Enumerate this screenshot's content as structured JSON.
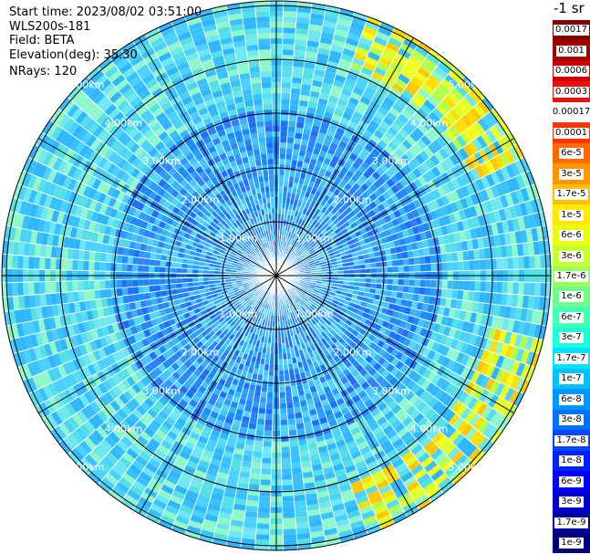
{
  "info": {
    "start_time": "Start time: 2023/08/02 03:51:00",
    "instrument": "WLS200s-181",
    "field": "Field: BETA",
    "elevation": "Elevation(deg): 35.30",
    "nrays": "NRays: 120"
  },
  "colorbar": {
    "title": "-1 sr",
    "labels": [
      "0.0017",
      "0.001",
      "0.0006",
      "0.0003",
      "0.00017",
      "0.0001",
      "6e-5",
      "3e-5",
      "1.7e-5",
      "1e-5",
      "6e-6",
      "3e-6",
      "1.7e-6",
      "1e-6",
      "6e-7",
      "3e-7",
      "1.7e-7",
      "1e-7",
      "6e-8",
      "3e-8",
      "1.7e-8",
      "1e-8",
      "6e-9",
      "3e-9",
      "1.7e-9",
      "1e-9"
    ],
    "colors": [
      "#7f0000",
      "#a50000",
      "#cc0000",
      "#ee1010",
      "#ffffff",
      "#ff3300",
      "#ff6a00",
      "#ff9500",
      "#ffbf00",
      "#ffe900",
      "#eaff0c",
      "#c4ff33",
      "#99ff5e",
      "#6fff88",
      "#45ffb2",
      "#1cffdb",
      "#00e4ff",
      "#00c0ff",
      "#0098ff",
      "#0070ff",
      "#0048ff",
      "#0020ff",
      "#0000f6",
      "#0000cc",
      "#0000a0",
      "#00007a"
    ]
  },
  "chart_data": {
    "type": "heatmap",
    "projection": "polar (PPI scan)",
    "field": "BETA",
    "nrays": 120,
    "ring_labels": [
      "1.00km",
      "2.00km",
      "3.00km",
      "4.00km",
      "5.00km"
    ],
    "spoke_angles_deg": [
      0,
      30,
      60,
      90,
      120,
      150,
      180,
      210,
      240,
      270,
      300,
      330
    ],
    "colorscale": "jet",
    "value_min": "1e-9",
    "value_max": "0.0017",
    "regions": [
      {
        "name": "inner",
        "range_km": [
          0,
          1.0
        ],
        "dominant_color": "#3fa9ff"
      },
      {
        "name": "middle",
        "range_km": [
          1.0,
          4.2
        ],
        "dominant_color": "#2fb0ff"
      },
      {
        "name": "outer-north-east arc",
        "range_km": [
          4.6,
          5.3
        ],
        "bearing_deg": [
          20,
          65
        ],
        "dominant_color": "#ffe600"
      },
      {
        "name": "outer-south-east arc",
        "range_km": [
          4.7,
          5.3
        ],
        "bearing_deg": [
          105,
          160
        ],
        "dominant_color": "#ffe600"
      }
    ]
  }
}
